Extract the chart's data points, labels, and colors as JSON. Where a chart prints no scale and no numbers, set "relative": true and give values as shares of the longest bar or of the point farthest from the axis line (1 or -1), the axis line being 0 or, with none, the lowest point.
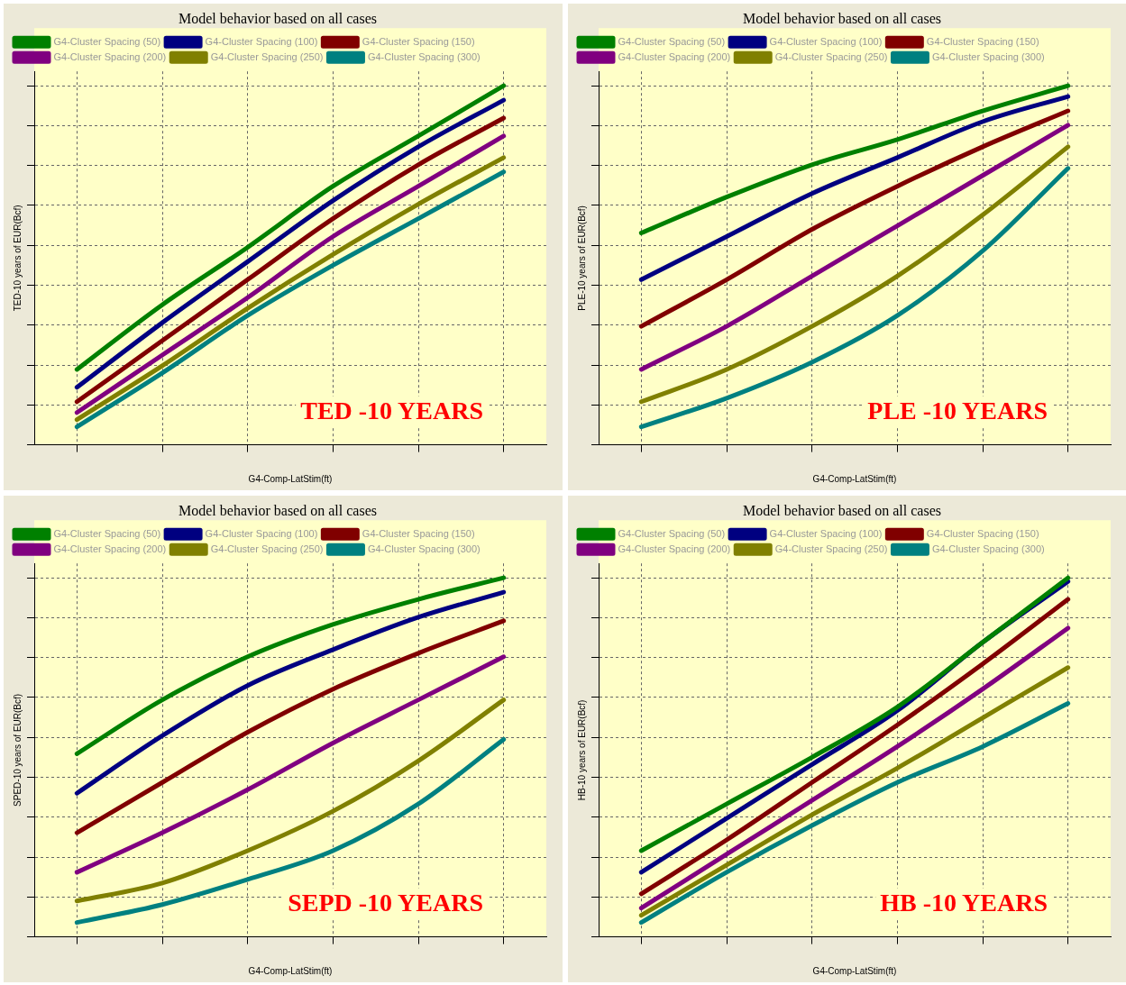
{
  "chart_data": [
    {
      "type": "line",
      "title": "Model behavior based on all cases",
      "xlabel": "G4-Comp-LatStim(ft)",
      "ylabel": "TED-10 years of EUR(Bcf)",
      "annotations": [
        "TED -10 YEARS"
      ],
      "relative": true,
      "grid": true,
      "legend": "top left",
      "marker": "none",
      "categories": [
        null,
        null,
        null,
        null,
        null,
        null
      ],
      "series": [
        {
          "name": "G4-Cluster Spacing (50)",
          "color": "#008000",
          "values": [
            0.21,
            0.39,
            0.55,
            0.72,
            0.86,
            1.0
          ]
        },
        {
          "name": "G4-Cluster Spacing (100)",
          "color": "#000080",
          "values": [
            0.16,
            0.34,
            0.51,
            0.68,
            0.83,
            0.96
          ]
        },
        {
          "name": "G4-Cluster Spacing (150)",
          "color": "#800000",
          "values": [
            0.12,
            0.29,
            0.46,
            0.63,
            0.78,
            0.91
          ]
        },
        {
          "name": "G4-Cluster Spacing (200)",
          "color": "#800080",
          "values": [
            0.09,
            0.25,
            0.41,
            0.58,
            0.72,
            0.86
          ]
        },
        {
          "name": "G4-Cluster Spacing (250)",
          "color": "#808000",
          "values": [
            0.07,
            0.22,
            0.38,
            0.53,
            0.67,
            0.8
          ]
        },
        {
          "name": "G4-Cluster Spacing (300)",
          "color": "#008080",
          "values": [
            0.05,
            0.2,
            0.36,
            0.5,
            0.63,
            0.76
          ]
        }
      ]
    },
    {
      "type": "line",
      "title": "Model behavior based on all cases",
      "xlabel": "G4-Comp-LatStim(ft)",
      "ylabel": "PLE-10 years of EUR(Bcf)",
      "annotations": [
        "PLE -10 YEARS"
      ],
      "relative": true,
      "grid": true,
      "legend": "top left",
      "marker": "none",
      "categories": [
        null,
        null,
        null,
        null,
        null,
        null
      ],
      "series": [
        {
          "name": "G4-Cluster Spacing (50)",
          "color": "#008000",
          "values": [
            0.59,
            0.69,
            0.78,
            0.85,
            0.93,
            1.0
          ]
        },
        {
          "name": "G4-Cluster Spacing (100)",
          "color": "#000080",
          "values": [
            0.46,
            0.58,
            0.7,
            0.8,
            0.9,
            0.97
          ]
        },
        {
          "name": "G4-Cluster Spacing (150)",
          "color": "#800000",
          "values": [
            0.33,
            0.46,
            0.6,
            0.72,
            0.83,
            0.93
          ]
        },
        {
          "name": "G4-Cluster Spacing (200)",
          "color": "#800080",
          "values": [
            0.21,
            0.33,
            0.47,
            0.61,
            0.75,
            0.89
          ]
        },
        {
          "name": "G4-Cluster Spacing (250)",
          "color": "#808000",
          "values": [
            0.12,
            0.21,
            0.33,
            0.47,
            0.64,
            0.83
          ]
        },
        {
          "name": "G4-Cluster Spacing (300)",
          "color": "#008080",
          "values": [
            0.05,
            0.13,
            0.23,
            0.36,
            0.54,
            0.77
          ]
        }
      ]
    },
    {
      "type": "line",
      "title": "Model behavior based on all cases",
      "xlabel": "G4-Comp-LatStim(ft)",
      "ylabel": "SPED-10 years of EUR(Bcf)",
      "annotations": [
        "SEPD -10 YEARS"
      ],
      "relative": true,
      "grid": true,
      "legend": "top left",
      "marker": "none",
      "categories": [
        null,
        null,
        null,
        null,
        null,
        null
      ],
      "series": [
        {
          "name": "G4-Cluster Spacing (50)",
          "color": "#008000",
          "values": [
            0.51,
            0.66,
            0.78,
            0.87,
            0.94,
            1.0
          ]
        },
        {
          "name": "G4-Cluster Spacing (100)",
          "color": "#000080",
          "values": [
            0.4,
            0.56,
            0.7,
            0.8,
            0.89,
            0.96
          ]
        },
        {
          "name": "G4-Cluster Spacing (150)",
          "color": "#800000",
          "values": [
            0.29,
            0.43,
            0.57,
            0.69,
            0.79,
            0.88
          ]
        },
        {
          "name": "G4-Cluster Spacing (200)",
          "color": "#800080",
          "values": [
            0.18,
            0.29,
            0.41,
            0.54,
            0.66,
            0.78
          ]
        },
        {
          "name": "G4-Cluster Spacing (250)",
          "color": "#808000",
          "values": [
            0.1,
            0.15,
            0.24,
            0.35,
            0.49,
            0.66
          ]
        },
        {
          "name": "G4-Cluster Spacing (300)",
          "color": "#008080",
          "values": [
            0.04,
            0.09,
            0.16,
            0.24,
            0.37,
            0.55
          ]
        }
      ]
    },
    {
      "type": "line",
      "title": "Model behavior based on all cases",
      "xlabel": "G4-Comp-LatStim(ft)",
      "ylabel": "HB-10 years of EUR(Bcf)",
      "annotations": [
        "HB -10 YEARS"
      ],
      "relative": true,
      "grid": true,
      "legend": "top left",
      "marker": "none",
      "categories": [
        null,
        null,
        null,
        null,
        null,
        null
      ],
      "series": [
        {
          "name": "G4-Cluster Spacing (50)",
          "color": "#008000",
          "values": [
            0.24,
            0.37,
            0.5,
            0.64,
            0.82,
            1.0
          ]
        },
        {
          "name": "G4-Cluster Spacing (100)",
          "color": "#000080",
          "values": [
            0.18,
            0.33,
            0.48,
            0.63,
            0.82,
            0.99
          ]
        },
        {
          "name": "G4-Cluster Spacing (150)",
          "color": "#800000",
          "values": [
            0.12,
            0.27,
            0.43,
            0.59,
            0.76,
            0.94
          ]
        },
        {
          "name": "G4-Cluster Spacing (200)",
          "color": "#800080",
          "values": [
            0.08,
            0.23,
            0.38,
            0.53,
            0.69,
            0.86
          ]
        },
        {
          "name": "G4-Cluster Spacing (250)",
          "color": "#808000",
          "values": [
            0.06,
            0.2,
            0.34,
            0.47,
            0.61,
            0.75
          ]
        },
        {
          "name": "G4-Cluster Spacing (300)",
          "color": "#008080",
          "values": [
            0.04,
            0.18,
            0.31,
            0.43,
            0.53,
            0.65
          ]
        }
      ]
    }
  ]
}
